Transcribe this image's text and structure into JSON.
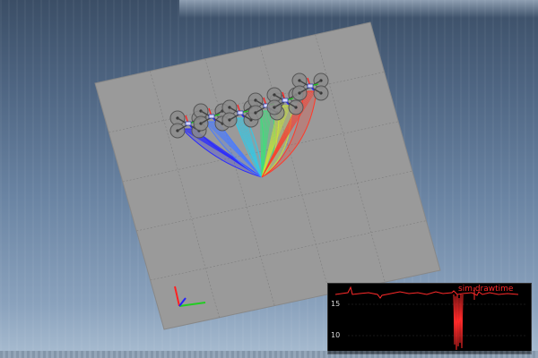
{
  "scene": {
    "ground_color": "#9a9a9a",
    "grid_color": "#7d7d7d",
    "trajectory_colors": [
      "#2a2aff",
      "#4a7cff",
      "#33c9e6",
      "#3de07a",
      "#c8e03a",
      "#ff3a2a"
    ],
    "axes": {
      "x_color": "#22cc22",
      "y_color": "#2222ff",
      "z_color": "#ff2222"
    }
  },
  "plot": {
    "title": "sim.drawtime",
    "ticks": [
      "15",
      "10"
    ],
    "line_color": "#ff2a2a"
  }
}
